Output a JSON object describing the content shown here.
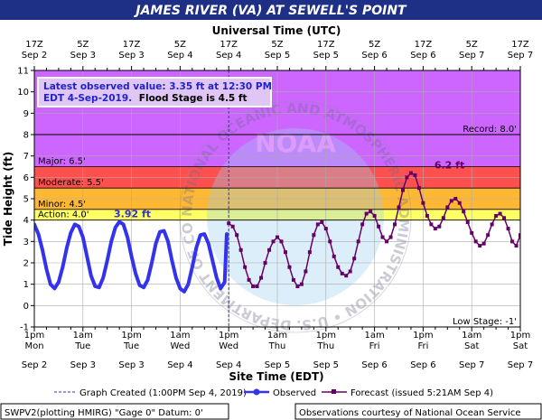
{
  "chart_data": {
    "type": "line",
    "title": "JAMES RIVER (VA) AT SEWELL'S POINT",
    "top_axis_title": "Universal Time (UTC)",
    "xlabel": "Site Time (EDT)",
    "ylabel": "Tide Height (ft)",
    "ylim": [
      -1,
      11
    ],
    "yticks": [
      -1,
      0,
      1,
      2,
      3,
      4,
      5,
      6,
      7,
      8,
      9,
      10,
      11
    ],
    "x_range_hours": [
      0,
      120
    ],
    "x_ticks": [
      {
        "hour": 0,
        "utc_time": "17Z",
        "utc_date": "Sep 2",
        "local_time": "1pm",
        "local_day": "Mon",
        "local_date": "Sep 2"
      },
      {
        "hour": 12,
        "utc_time": "5Z",
        "utc_date": "Sep 3",
        "local_time": "1am",
        "local_day": "Tue",
        "local_date": "Sep 3"
      },
      {
        "hour": 24,
        "utc_time": "17Z",
        "utc_date": "Sep 3",
        "local_time": "1pm",
        "local_day": "Tue",
        "local_date": "Sep 3"
      },
      {
        "hour": 36,
        "utc_time": "5Z",
        "utc_date": "Sep 4",
        "local_time": "1am",
        "local_day": "Wed",
        "local_date": "Sep 4"
      },
      {
        "hour": 48,
        "utc_time": "17Z",
        "utc_date": "Sep 4",
        "local_time": "1pm",
        "local_day": "Wed",
        "local_date": "Sep 4"
      },
      {
        "hour": 60,
        "utc_time": "5Z",
        "utc_date": "Sep 5",
        "local_time": "1am",
        "local_day": "Thu",
        "local_date": "Sep 5"
      },
      {
        "hour": 72,
        "utc_time": "17Z",
        "utc_date": "Sep 5",
        "local_time": "1pm",
        "local_day": "Thu",
        "local_date": "Sep 5"
      },
      {
        "hour": 84,
        "utc_time": "5Z",
        "utc_date": "Sep 6",
        "local_time": "1am",
        "local_day": "Fri",
        "local_date": "Sep 6"
      },
      {
        "hour": 96,
        "utc_time": "17Z",
        "utc_date": "Sep 6",
        "local_time": "1pm",
        "local_day": "Fri",
        "local_date": "Sep 6"
      },
      {
        "hour": 108,
        "utc_time": "5Z",
        "utc_date": "Sep 7",
        "local_time": "1am",
        "local_day": "Sat",
        "local_date": "Sep 7"
      },
      {
        "hour": 120,
        "utc_time": "17Z",
        "utc_date": "Sep 7",
        "local_time": "1pm",
        "local_day": "Sat",
        "local_date": "Sep 7"
      }
    ],
    "bands": [
      {
        "name": "Action",
        "from": 4.0,
        "to": 4.5,
        "color": "#ffff66",
        "label": "Action: 4.0'"
      },
      {
        "name": "Minor",
        "from": 4.5,
        "to": 5.5,
        "color": "#ffb833",
        "label": "Minor: 4.5'"
      },
      {
        "name": "Moderate",
        "from": 5.5,
        "to": 6.5,
        "color": "#ff5050",
        "label": "Moderate: 5.5'"
      },
      {
        "name": "Major",
        "from": 6.5,
        "to": 11,
        "color": "#cc66ff",
        "label": "Major: 6.5'"
      }
    ],
    "reference_lines": [
      {
        "name": "Record",
        "value": 8.0,
        "label": "Record: 8.0'"
      },
      {
        "name": "Low Stage",
        "value": -1,
        "label": "Low Stage: -1'"
      }
    ],
    "graph_created_hour": 48,
    "info_box": {
      "line1": "Latest observed value: 3.35 ft at 12:30 PM",
      "line2_prefix": "EDT 4-Sep-2019.",
      "line2_suffix": "Flood Stage is 4.5 ft"
    },
    "annotations": [
      {
        "text": "3.92 ft",
        "hour": 24.2,
        "value": 3.92,
        "color": "#3333cc"
      },
      {
        "text": "6.2 ft",
        "hour": 102.5,
        "value": 6.2,
        "color": "#660066"
      }
    ],
    "series": [
      {
        "name": "Observed",
        "color": "#3333ee",
        "x": [
          0,
          1,
          2,
          3,
          4,
          5,
          6,
          7,
          8,
          9,
          10,
          11,
          12,
          13,
          14,
          15,
          16,
          17,
          18,
          19,
          20,
          21,
          22,
          23,
          24,
          25,
          26,
          27,
          28,
          29,
          30,
          31,
          32,
          33,
          34,
          35,
          36,
          37,
          38,
          39,
          40,
          41,
          42,
          43,
          44,
          45,
          46,
          47,
          47.5
        ],
        "y": [
          3.8,
          3.35,
          2.6,
          1.7,
          1.0,
          0.8,
          1.1,
          1.8,
          2.7,
          3.4,
          3.8,
          3.7,
          3.2,
          2.3,
          1.4,
          0.9,
          0.85,
          1.3,
          2.1,
          3.0,
          3.65,
          3.92,
          3.8,
          3.2,
          2.3,
          1.5,
          0.95,
          0.85,
          1.2,
          2.0,
          2.9,
          3.45,
          3.5,
          3.0,
          2.1,
          1.3,
          0.8,
          0.65,
          1.0,
          1.8,
          2.7,
          3.3,
          3.35,
          2.9,
          2.1,
          1.3,
          0.8,
          1.1,
          3.35
        ]
      },
      {
        "name": "Forecast (issued 5:21AM Sep 4)",
        "color": "#660066",
        "x": [
          48,
          49,
          50,
          51,
          52,
          53,
          54,
          55,
          56,
          57,
          58,
          59,
          60,
          61,
          62,
          63,
          64,
          65,
          66,
          67,
          68,
          69,
          70,
          71,
          72,
          73,
          74,
          75,
          76,
          77,
          78,
          79,
          80,
          81,
          82,
          83,
          84,
          85,
          86,
          87,
          88,
          89,
          90,
          91,
          92,
          93,
          94,
          95,
          96,
          97,
          98,
          99,
          100,
          101,
          102,
          103,
          104,
          105,
          106,
          107,
          108,
          109,
          110,
          111,
          112,
          113,
          114,
          115,
          116,
          117,
          118,
          119,
          120
        ],
        "y": [
          3.85,
          3.7,
          3.3,
          2.6,
          1.8,
          1.2,
          0.9,
          0.9,
          1.3,
          2.0,
          2.6,
          3.0,
          3.2,
          3.0,
          2.5,
          1.8,
          1.2,
          0.9,
          1.0,
          1.6,
          2.5,
          3.3,
          3.8,
          3.9,
          3.6,
          3.0,
          2.3,
          1.8,
          1.5,
          1.4,
          1.6,
          2.2,
          3.0,
          3.8,
          4.3,
          4.4,
          4.2,
          3.7,
          3.2,
          3.0,
          3.2,
          3.8,
          4.6,
          5.4,
          6.0,
          6.2,
          6.1,
          5.5,
          4.8,
          4.2,
          3.8,
          3.6,
          3.7,
          4.1,
          4.6,
          4.9,
          5.0,
          4.8,
          4.4,
          3.9,
          3.4,
          3.0,
          2.8,
          2.9,
          3.3,
          3.8,
          4.2,
          4.3,
          4.1,
          3.6,
          3.0,
          2.8,
          3.3
        ]
      }
    ]
  },
  "legend": {
    "graph_created": "Graph Created (1:00PM Sep 4, 2019)",
    "observed": "Observed",
    "forecast": "Forecast (issued 5:21AM Sep 4)"
  },
  "footer": {
    "left": "SWPV2(plotting HMIRG)  \"Gage 0\"  Datum:  0'",
    "right": "Observations courtesy of National Ocean Service"
  },
  "watermark_text": "NATIONAL OCEANIC AND ATMOSPHERIC ADMINISTRATION • U.S. DEPARTMENT OF COMMERCE •",
  "watermark_center": "NOAA",
  "colors": {
    "title_bg": "#1e2f86",
    "plot_bg": "#ffffff",
    "observed": "#3333ee",
    "forecast": "#660066",
    "info_text": "#2222cc"
  }
}
